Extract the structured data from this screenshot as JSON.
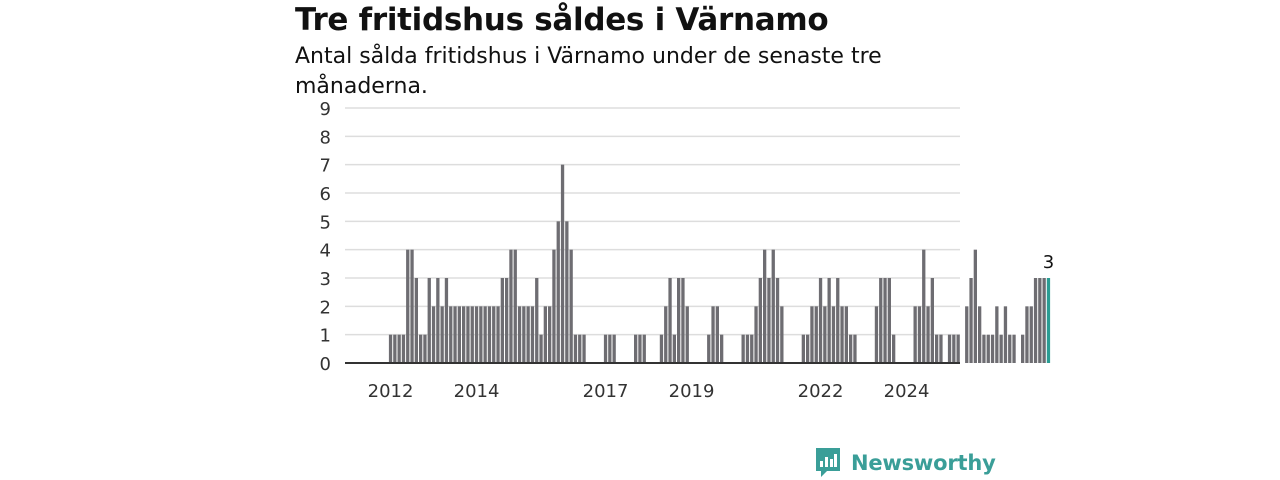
{
  "title": "Tre fritidshus såldes i Värnamo",
  "subtitle": "Antal sålda fritidshus i Värnamo under de senaste tre månaderna.",
  "brand": {
    "name": "Newsworthy",
    "icon": "newsworthy-logo-icon"
  },
  "colors": {
    "bar": "#6e6d72",
    "highlight": "#2a9d93",
    "grid": "#dddddd",
    "axis": "#333333",
    "brand": "#3a9e98"
  },
  "chart_data": {
    "type": "bar",
    "title": "Tre fritidshus såldes i Värnamo",
    "subtitle": "Antal sålda fritidshus i Värnamo under de senaste tre månaderna.",
    "xlabel": "",
    "ylabel": "",
    "ylim": [
      0,
      9
    ],
    "yticks": [
      0,
      1,
      2,
      3,
      4,
      5,
      6,
      7,
      8,
      9
    ],
    "grid": true,
    "xtick_labels": [
      {
        "label": "2012",
        "index": 3
      },
      {
        "label": "2014",
        "index": 23
      },
      {
        "label": "2017",
        "index": 53
      },
      {
        "label": "2019",
        "index": 73
      },
      {
        "label": "2022",
        "index": 103
      },
      {
        "label": "2024",
        "index": 123
      }
    ],
    "values": [
      0,
      0,
      0,
      1,
      1,
      1,
      1,
      4,
      4,
      3,
      1,
      1,
      3,
      2,
      3,
      2,
      3,
      2,
      2,
      2,
      2,
      2,
      2,
      2,
      2,
      2,
      2,
      2,
      2,
      3,
      3,
      4,
      4,
      2,
      2,
      2,
      2,
      3,
      1,
      2,
      2,
      4,
      5,
      7,
      5,
      4,
      1,
      1,
      1,
      0,
      0,
      0,
      0,
      1,
      1,
      1,
      0,
      0,
      0,
      0,
      1,
      1,
      1,
      0,
      0,
      0,
      1,
      2,
      3,
      1,
      3,
      3,
      2,
      0,
      0,
      0,
      0,
      1,
      2,
      2,
      1,
      0,
      0,
      0,
      0,
      1,
      1,
      1,
      2,
      3,
      4,
      3,
      4,
      3,
      2,
      0,
      0,
      0,
      0,
      1,
      1,
      2,
      2,
      3,
      2,
      3,
      2,
      3,
      2,
      2,
      1,
      1,
      0,
      0,
      0,
      0,
      2,
      3,
      3,
      3,
      1,
      0,
      0,
      0,
      0,
      2,
      2,
      4,
      2,
      3,
      1,
      1,
      0,
      1,
      1,
      1,
      0,
      2,
      3,
      4,
      2,
      1,
      1,
      1,
      2,
      1,
      2,
      1,
      1,
      0,
      1,
      2,
      2,
      3,
      3,
      3,
      3
    ],
    "highlight_index": 156,
    "highlight_label": "3"
  }
}
